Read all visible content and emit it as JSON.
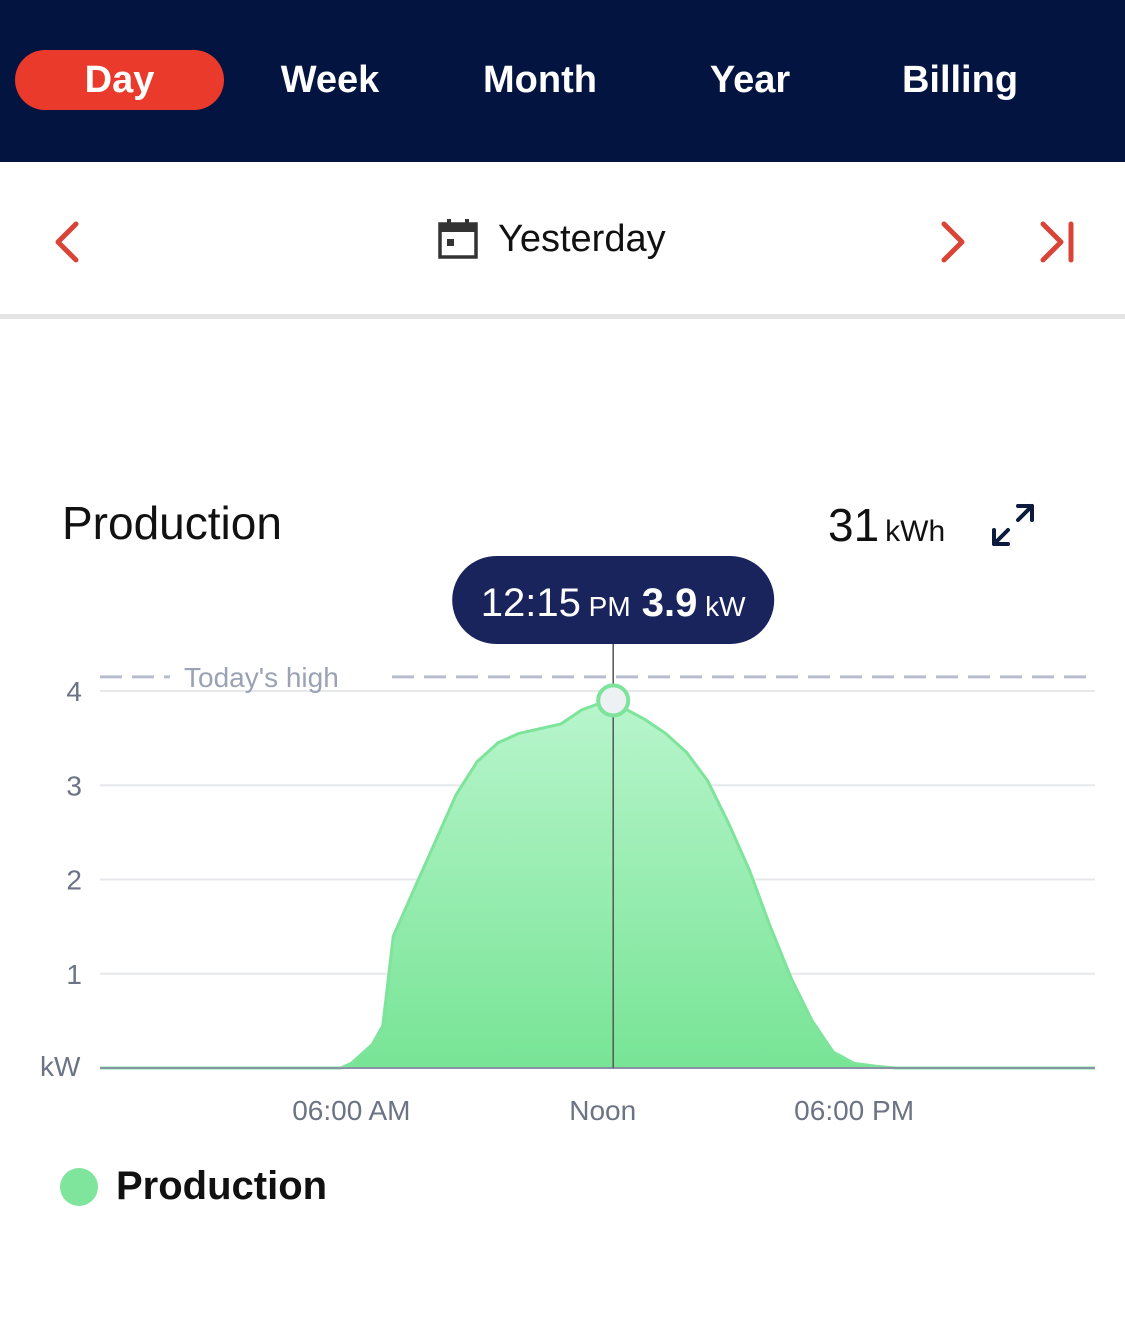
{
  "tabs": [
    {
      "label": "Day",
      "active": true
    },
    {
      "label": "Week",
      "active": false
    },
    {
      "label": "Month",
      "active": false
    },
    {
      "label": "Year",
      "active": false
    },
    {
      "label": "Billing",
      "active": false
    }
  ],
  "date_nav": {
    "label": "Yesterday",
    "icons": [
      "chevron-left-icon",
      "calendar-icon",
      "chevron-right-icon",
      "skip-to-end-icon"
    ]
  },
  "production": {
    "title": "Production",
    "total_value": "31",
    "total_unit": "kWh",
    "expand_icon": "expand-icon"
  },
  "tooltip": {
    "time": "12:15",
    "ampm": "PM",
    "value": "3.9",
    "unit": "kW"
  },
  "legend": {
    "label": "Production"
  },
  "colors": {
    "header_bg": "#041440",
    "active_tab": "#ea3a2b",
    "accent_red": "#d94436",
    "area_fill": "#7fe49c",
    "area_stroke": "#7ee39b",
    "tooltip_bg": "#1a245c"
  },
  "chart_data": {
    "type": "area",
    "ylabel": "kW",
    "ylim": [
      0,
      4.25
    ],
    "yticks": [
      1,
      2,
      3,
      4
    ],
    "xticks": [
      {
        "x": 6,
        "label": "06:00 AM"
      },
      {
        "x": 12,
        "label": "Noon"
      },
      {
        "x": 18,
        "label": "06:00 PM"
      }
    ],
    "xlim": [
      0,
      23.75
    ],
    "reference_line": {
      "label": "Today's high",
      "value": 4.15
    },
    "highlight": {
      "x": 12.25,
      "y": 3.9
    },
    "series": [
      {
        "name": "Production",
        "points": [
          [
            0,
            0
          ],
          [
            5.75,
            0
          ],
          [
            6,
            0.05
          ],
          [
            6.5,
            0.25
          ],
          [
            6.75,
            0.45
          ],
          [
            7.0,
            1.4
          ],
          [
            7.5,
            1.9
          ],
          [
            8,
            2.4
          ],
          [
            8.5,
            2.9
          ],
          [
            9,
            3.25
          ],
          [
            9.5,
            3.45
          ],
          [
            10,
            3.55
          ],
          [
            10.5,
            3.6
          ],
          [
            11,
            3.65
          ],
          [
            11.5,
            3.8
          ],
          [
            12,
            3.88
          ],
          [
            12.25,
            3.9
          ],
          [
            12.5,
            3.82
          ],
          [
            13,
            3.7
          ],
          [
            13.5,
            3.55
          ],
          [
            14,
            3.35
          ],
          [
            14.5,
            3.05
          ],
          [
            15,
            2.6
          ],
          [
            15.5,
            2.1
          ],
          [
            16,
            1.5
          ],
          [
            16.5,
            0.95
          ],
          [
            17,
            0.5
          ],
          [
            17.5,
            0.17
          ],
          [
            18,
            0.05
          ],
          [
            18.5,
            0.02
          ],
          [
            19,
            0
          ],
          [
            23.75,
            0
          ]
        ]
      }
    ]
  }
}
